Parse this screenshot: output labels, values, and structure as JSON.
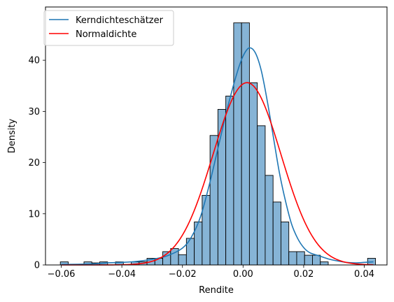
{
  "chart_data": {
    "type": "histogram",
    "xlabel": "Rendite",
    "ylabel": "Density",
    "xlim": [
      -0.0652,
      0.0475
    ],
    "ylim": [
      0,
      50.4
    ],
    "xticks": [
      -0.06,
      -0.04,
      -0.02,
      0.0,
      0.02,
      0.04
    ],
    "xtick_labels": [
      "−0.06",
      "−0.04",
      "−0.02",
      "0.00",
      "0.02",
      "0.04"
    ],
    "yticks": [
      0,
      10,
      20,
      30,
      40
    ],
    "ytick_labels": [
      "0",
      "10",
      "20",
      "30",
      "40"
    ],
    "grid": false,
    "legend_position": "top-left",
    "bin_edges": [
      -0.0603,
      -0.0577,
      -0.0551,
      -0.0525,
      -0.0499,
      -0.0473,
      -0.0447,
      -0.0421,
      -0.0395,
      -0.0369,
      -0.0343,
      -0.0317,
      -0.0291,
      -0.0265,
      -0.0239,
      -0.0213,
      -0.0187,
      -0.0161,
      -0.0135,
      -0.0109,
      -0.0083,
      -0.0057,
      -0.0031,
      -0.0005,
      0.0021,
      0.0047,
      0.0073,
      0.0099,
      0.0125,
      0.0151,
      0.0177,
      0.0203,
      0.0229,
      0.0255,
      0.0281,
      0.0307,
      0.0333,
      0.0359,
      0.0385,
      0.0411,
      0.0437
    ],
    "bin_values": [
      0.6,
      0,
      0,
      0.6,
      0.4,
      0.6,
      0,
      0.6,
      0,
      0.6,
      0.6,
      1.3,
      1.3,
      2.6,
      3.2,
      2.0,
      5.2,
      8.4,
      13.6,
      25.3,
      30.4,
      33.0,
      47.3,
      47.3,
      35.6,
      27.2,
      17.5,
      12.3,
      8.4,
      2.6,
      2.6,
      1.9,
      1.9,
      0.6,
      0,
      0,
      0,
      0,
      0,
      1.3
    ],
    "bar_color": "#86b4d6",
    "series": [
      {
        "name": "Kerndichteschätzer",
        "color": "#1f77b4",
        "x": [
          -0.06,
          -0.05,
          -0.045,
          -0.04,
          -0.035,
          -0.03,
          -0.025,
          -0.02,
          -0.017,
          -0.014,
          -0.011,
          -0.008,
          -0.005,
          -0.002,
          0.0,
          0.002,
          0.004,
          0.006,
          0.008,
          0.01,
          0.012,
          0.014,
          0.016,
          0.018,
          0.02,
          0.022,
          0.025,
          0.028,
          0.031,
          0.034,
          0.037,
          0.04,
          0.043
        ],
        "y": [
          0.1,
          0.2,
          0.4,
          0.5,
          0.7,
          1.1,
          1.8,
          3.3,
          5.5,
          9.5,
          16.0,
          23.5,
          31.0,
          37.5,
          40.8,
          42.4,
          41.5,
          38.0,
          32.0,
          25.0,
          18.0,
          12.5,
          8.0,
          5.2,
          3.4,
          2.4,
          1.8,
          1.2,
          0.8,
          0.5,
          0.4,
          0.5,
          0.6
        ]
      },
      {
        "name": "Normaldichte",
        "color": "#ff0000",
        "type": "normal_pdf",
        "mean": 0.0013,
        "std": 0.0112,
        "x_range": [
          -0.06,
          0.043
        ]
      }
    ]
  }
}
